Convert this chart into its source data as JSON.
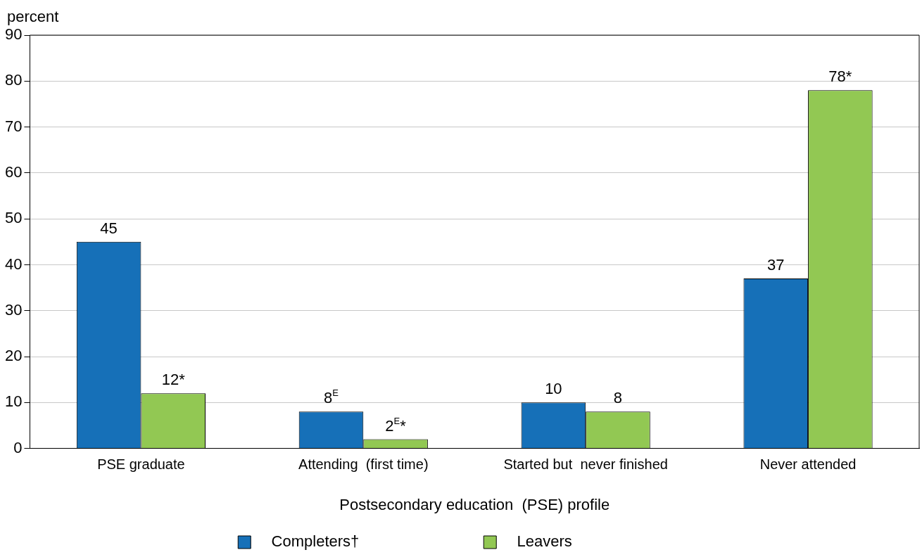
{
  "chart_data": {
    "type": "bar",
    "categories": [
      "PSE graduate",
      "Attending  (first time)",
      "Started but  never finished",
      "Never attended"
    ],
    "xlabel": "Postsecondary education  (PSE) profile",
    "ylabel": "percent",
    "series": [
      {
        "name": "Completers†",
        "color": "#1670b8",
        "values": [
          45,
          8,
          10,
          37
        ],
        "value_labels": [
          "45",
          "8$^{E}$",
          "10",
          "37"
        ]
      },
      {
        "name": "Leavers",
        "color": "#92c853",
        "values": [
          12,
          2,
          8,
          78
        ],
        "value_labels": [
          "12*",
          "2$^{E}$*",
          "8",
          "78*"
        ]
      }
    ],
    "ylim": [
      0,
      90
    ],
    "yticks": [
      0,
      10,
      20,
      30,
      40,
      50,
      60,
      70,
      80,
      90
    ],
    "grid": "y",
    "legend": "bottom"
  }
}
